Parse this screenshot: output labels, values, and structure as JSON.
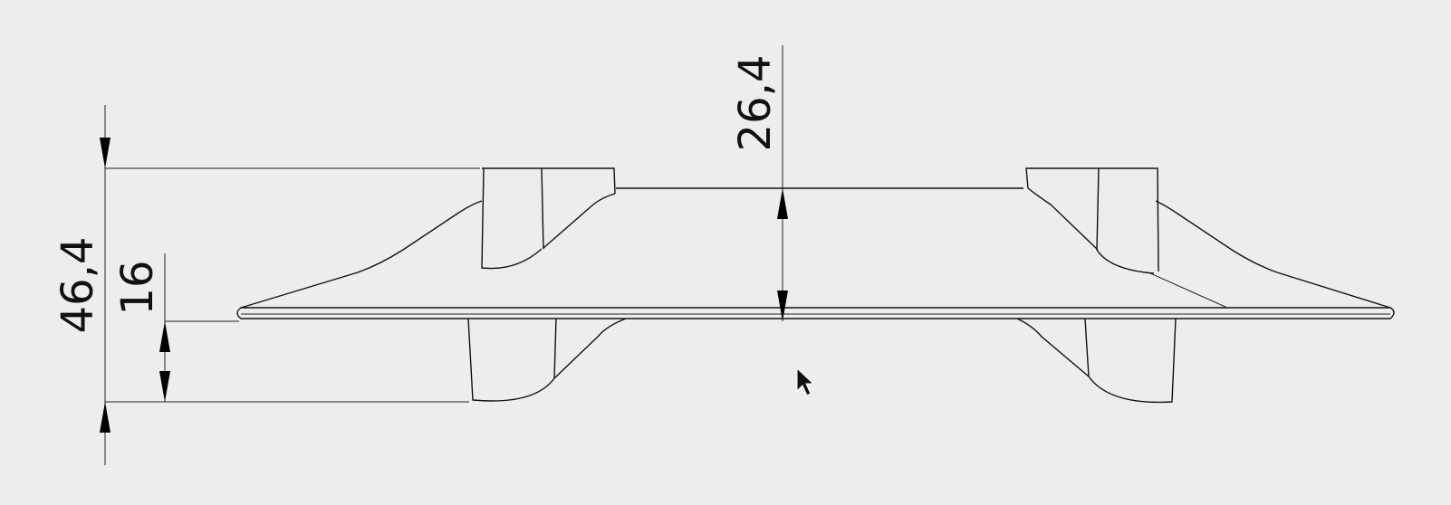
{
  "dimensions": {
    "overall_height": "46,4",
    "lower_height": "16",
    "upper_height": "26,4"
  }
}
